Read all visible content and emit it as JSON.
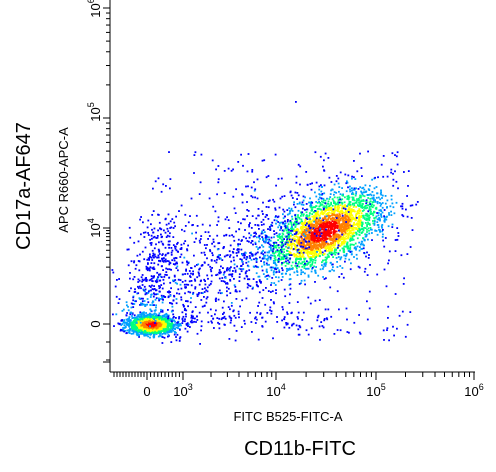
{
  "chart_data": {
    "type": "scatter",
    "plot_style": "flow cytometry density dot plot (pseudocolor)",
    "x_axis": {
      "label": "FITC B525-FITC-A",
      "outer_label": "CD11b-FITC",
      "scale": "biexponential",
      "ticks": [
        {
          "value": 0,
          "label": "0",
          "exp": ""
        },
        {
          "value": 1000,
          "label": "10",
          "exp": "3"
        },
        {
          "value": 10000,
          "label": "10",
          "exp": "4"
        },
        {
          "value": 100000,
          "label": "10",
          "exp": "5"
        },
        {
          "value": 1000000,
          "label": "10",
          "exp": "6"
        }
      ]
    },
    "y_axis": {
      "label": "APC R660-APC-A",
      "outer_label": "CD17a-AF647",
      "scale": "biexponential",
      "ticks": [
        {
          "value": 0,
          "label": "0",
          "exp": ""
        },
        {
          "value": 10000,
          "label": "10",
          "exp": "4"
        },
        {
          "value": 100000,
          "label": "10",
          "exp": "5"
        },
        {
          "value": 1000000,
          "label": "10",
          "exp": "6"
        }
      ]
    },
    "populations": [
      {
        "name": "",
        "center": {
          "x": 100,
          "y": 0
        },
        "density": "very high"
      },
      {
        "name": "",
        "center": {
          "x": 30000,
          "y": 9000
        },
        "density": "high"
      }
    ],
    "density_colors": [
      "#0000ff",
      "#00a0ff",
      "#00ff80",
      "#ffff00",
      "#ff8000",
      "#ff0000"
    ],
    "grid": false,
    "legend": "none"
  }
}
